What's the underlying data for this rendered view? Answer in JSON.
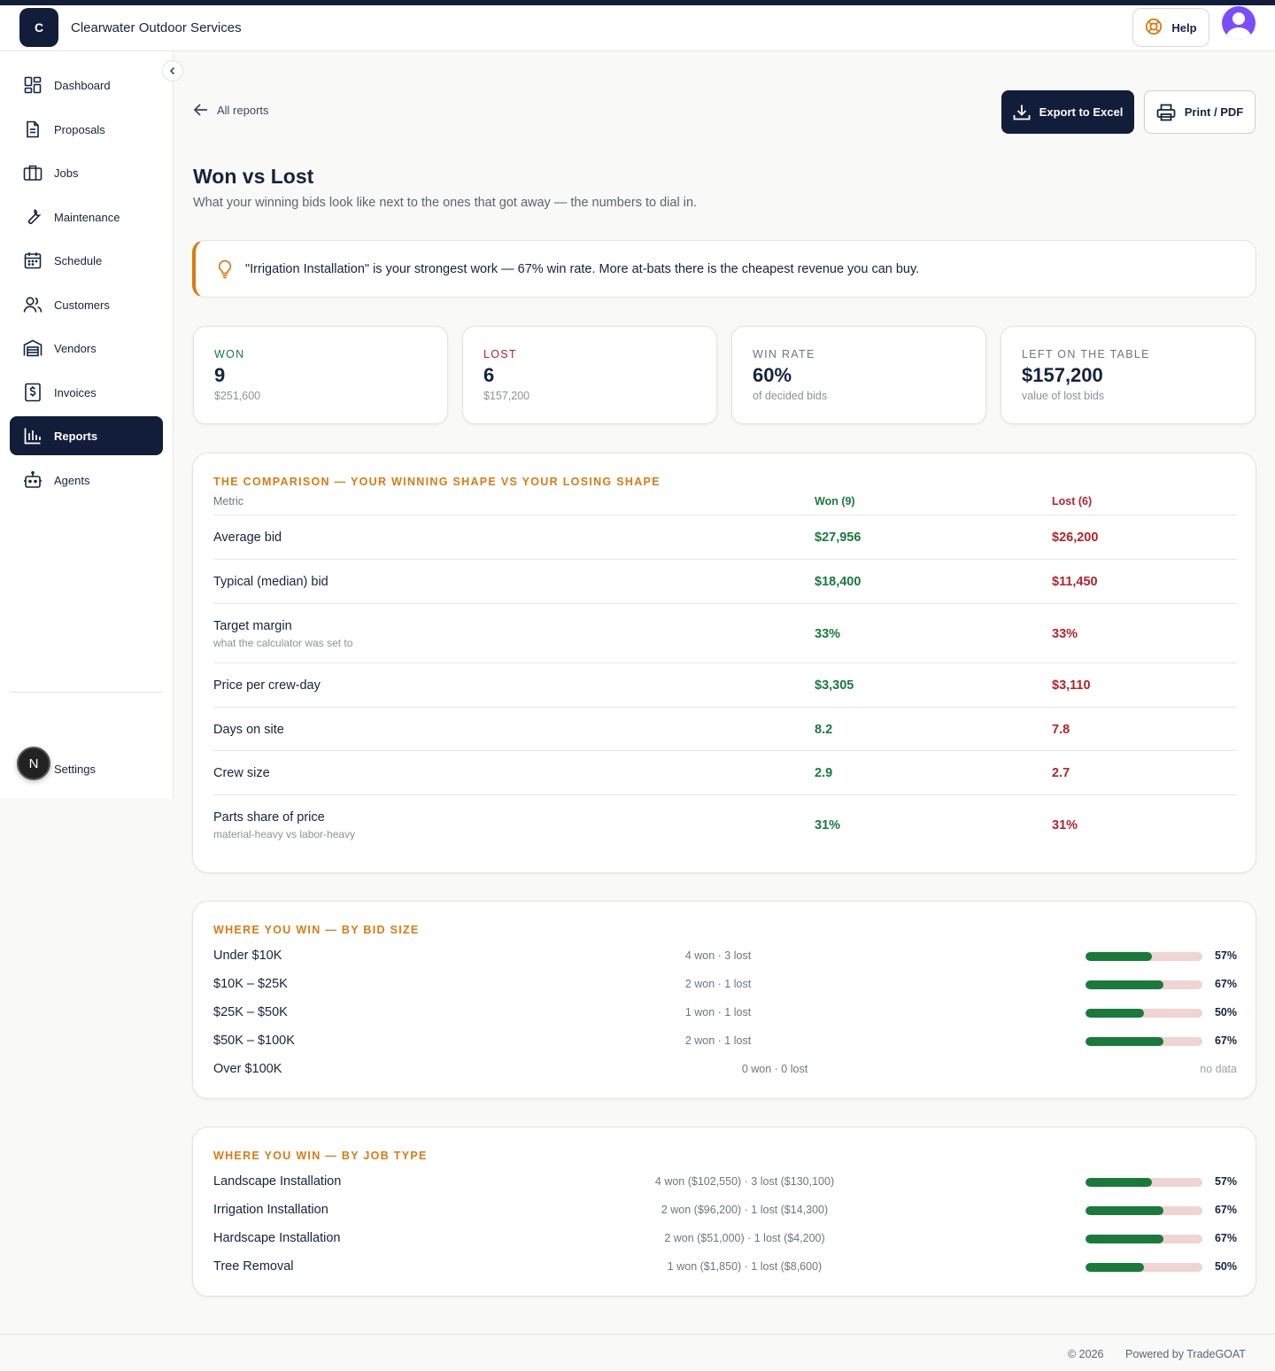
{
  "header": {
    "logo_letter": "C",
    "company": "Clearwater Outdoor Services",
    "help_label": "Help"
  },
  "sidebar": {
    "items": [
      {
        "label": "Dashboard",
        "icon": "dashboard-icon"
      },
      {
        "label": "Proposals",
        "icon": "document-icon"
      },
      {
        "label": "Jobs",
        "icon": "briefcase-icon"
      },
      {
        "label": "Maintenance",
        "icon": "wrench-icon"
      },
      {
        "label": "Schedule",
        "icon": "calendar-icon"
      },
      {
        "label": "Customers",
        "icon": "users-icon"
      },
      {
        "label": "Vendors",
        "icon": "warehouse-icon"
      },
      {
        "label": "Invoices",
        "icon": "invoice-icon"
      },
      {
        "label": "Reports",
        "icon": "bar-chart-icon",
        "active": true
      },
      {
        "label": "Agents",
        "icon": "robot-icon"
      }
    ],
    "settings_label": "Settings",
    "badge_letter": "N"
  },
  "toolbar": {
    "back_label": "All reports",
    "export_label": "Export to Excel",
    "print_label": "Print / PDF"
  },
  "page": {
    "title": "Won vs Lost",
    "subtitle": "What your winning bids look like next to the ones that got away — the numbers to dial in."
  },
  "insight": {
    "text": "\"Irrigation Installation\" is your strongest work — 67% win rate. More at-bats there is the cheapest revenue you can buy."
  },
  "stats": [
    {
      "label": "WON",
      "value": "9",
      "sub": "$251,600",
      "label_color": "#1a7a3c"
    },
    {
      "label": "LOST",
      "value": "6",
      "sub": "$157,200",
      "label_color": "#b5232a"
    },
    {
      "label": "WIN RATE",
      "value": "60%",
      "sub": "of decided bids",
      "label_color": "#6d7586"
    },
    {
      "label": "LEFT ON THE TABLE",
      "value": "$157,200",
      "sub": "value of lost bids",
      "label_color": "#6d7586"
    }
  ],
  "comparison": {
    "title": "THE COMPARISON — YOUR WINNING SHAPE VS YOUR LOSING SHAPE",
    "col_metric": "Metric",
    "col_won": "Won (9)",
    "col_lost": "Lost (6)",
    "rows": [
      {
        "metric": "Average bid",
        "sub": "",
        "won": "$27,956",
        "lost": "$26,200"
      },
      {
        "metric": "Typical (median) bid",
        "sub": "",
        "won": "$18,400",
        "lost": "$11,450"
      },
      {
        "metric": "Target margin",
        "sub": "what the calculator was set to",
        "won": "33%",
        "lost": "33%"
      },
      {
        "metric": "Price per crew-day",
        "sub": "",
        "won": "$3,305",
        "lost": "$3,110"
      },
      {
        "metric": "Days on site",
        "sub": "",
        "won": "8.2",
        "lost": "7.8"
      },
      {
        "metric": "Crew size",
        "sub": "",
        "won": "2.9",
        "lost": "2.7"
      },
      {
        "metric": "Parts share of price",
        "sub": "material-heavy vs labor-heavy",
        "won": "31%",
        "lost": "31%"
      }
    ]
  },
  "by_size": {
    "title": "WHERE YOU WIN — BY BID SIZE",
    "rows": [
      {
        "name": "Under $10K",
        "counts": "4 won · 3 lost",
        "pct": "57%",
        "rate": 0.57
      },
      {
        "name": "$10K – $25K",
        "counts": "2 won · 1 lost",
        "pct": "67%",
        "rate": 0.67
      },
      {
        "name": "$25K – $50K",
        "counts": "1 won · 1 lost",
        "pct": "50%",
        "rate": 0.5
      },
      {
        "name": "$50K – $100K",
        "counts": "2 won · 1 lost",
        "pct": "67%",
        "rate": 0.67
      },
      {
        "name": "Over $100K",
        "counts": "0 won · 0 lost",
        "pct": "no data",
        "rate": null
      }
    ]
  },
  "by_type": {
    "title": "WHERE YOU WIN — BY JOB TYPE",
    "rows": [
      {
        "name": "Landscape Installation",
        "counts": "4 won ($102,550) · 3 lost ($130,100)",
        "pct": "57%",
        "rate": 0.57
      },
      {
        "name": "Irrigation Installation",
        "counts": "2 won ($96,200) · 1 lost ($14,300)",
        "pct": "67%",
        "rate": 0.67
      },
      {
        "name": "Hardscape Installation",
        "counts": "2 won ($51,000) · 1 lost ($4,200)",
        "pct": "67%",
        "rate": 0.67
      },
      {
        "name": "Tree Removal",
        "counts": "1 won ($1,850) · 1 lost ($8,600)",
        "pct": "50%",
        "rate": 0.5
      }
    ]
  },
  "footer": {
    "copyright": "© 2026",
    "powered": "Powered by TradeGOAT"
  }
}
